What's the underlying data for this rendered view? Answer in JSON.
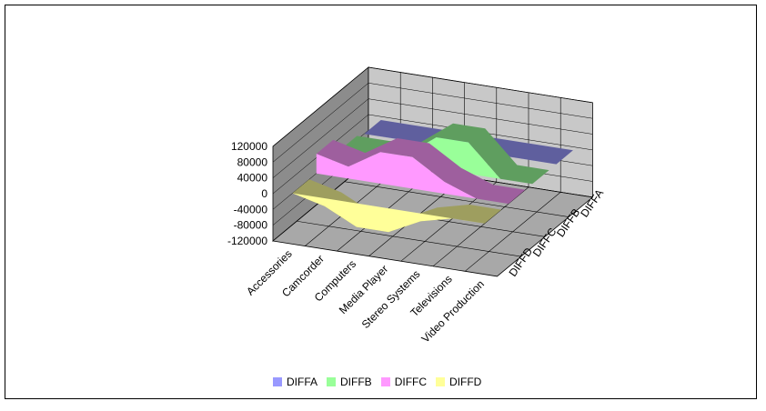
{
  "chart_data": {
    "type": "area",
    "subtype": "3d-area",
    "categories": [
      "Accessories",
      "Camcorder",
      "Computers",
      "Media Player",
      "Stereo Systems",
      "Televisions",
      "Video Production"
    ],
    "series": [
      {
        "name": "DIFFA",
        "color": "#9999ff",
        "values": [
          0,
          0,
          0,
          0,
          0,
          0,
          0
        ]
      },
      {
        "name": "DIFFB",
        "color": "#99ff99",
        "values": [
          10000,
          10000,
          20000,
          80000,
          80000,
          0,
          0
        ]
      },
      {
        "name": "DIFFC",
        "color": "#ff99ff",
        "values": [
          50000,
          30000,
          80000,
          80000,
          30000,
          0,
          0
        ]
      },
      {
        "name": "DIFFD",
        "color": "#ffff99",
        "values": [
          0,
          -20000,
          -60000,
          -60000,
          -20000,
          0,
          0
        ]
      }
    ],
    "y_ticks": [
      "120000",
      "80000",
      "40000",
      "0",
      "-40000",
      "-80000",
      "-120000"
    ],
    "depth_labels": [
      "DIFFA",
      "DIFFB",
      "DIFFC",
      "DIFFD"
    ],
    "ylim": [
      -120000,
      120000
    ],
    "legend_position": "bottom",
    "grid": true
  }
}
